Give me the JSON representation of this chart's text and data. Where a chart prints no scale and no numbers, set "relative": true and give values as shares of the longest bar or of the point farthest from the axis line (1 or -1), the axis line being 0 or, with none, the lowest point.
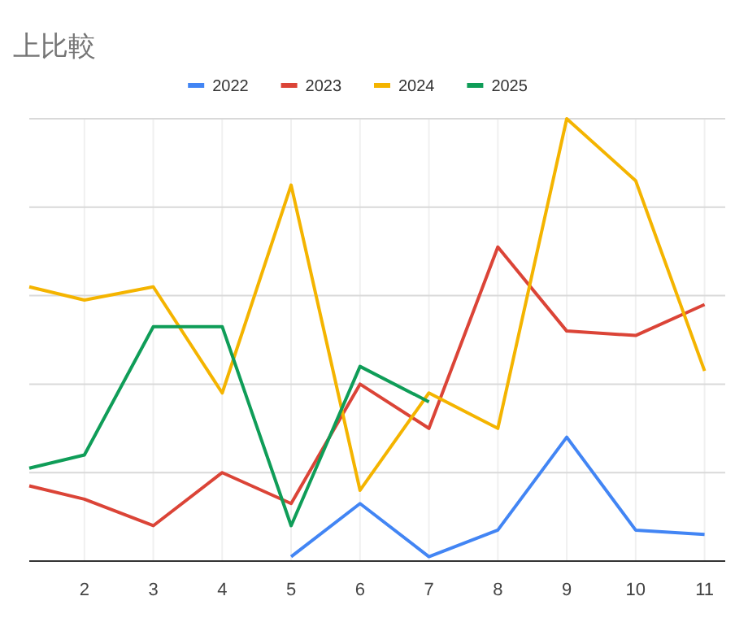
{
  "chart_data": {
    "type": "line",
    "title": "上比較",
    "relative": true,
    "grid": true,
    "legend": "top",
    "xlim": [
      1.2,
      11.3
    ],
    "xticks": [
      2,
      3,
      4,
      5,
      6,
      7,
      8,
      9,
      10,
      11
    ],
    "series": [
      {
        "name": "2022",
        "color": "#4285f4",
        "x": [
          5,
          6,
          7,
          8,
          9,
          10,
          11
        ],
        "values": [
          0.01,
          0.13,
          0.01,
          0.07,
          0.28,
          0.07,
          0.06
        ]
      },
      {
        "name": "2023",
        "color": "#db4437",
        "x": [
          1.2,
          2,
          3,
          4,
          5,
          6,
          7,
          8,
          9,
          10,
          11
        ],
        "values": [
          0.17,
          0.14,
          0.08,
          0.2,
          0.13,
          0.4,
          0.3,
          0.71,
          0.52,
          0.51,
          0.58
        ]
      },
      {
        "name": "2024",
        "color": "#f4b400",
        "x": [
          1.2,
          2,
          3,
          4,
          5,
          6,
          7,
          8,
          9,
          10,
          11
        ],
        "values": [
          0.62,
          0.59,
          0.62,
          0.38,
          0.85,
          0.16,
          0.38,
          0.3,
          1,
          0.86,
          0.43
        ]
      },
      {
        "name": "2025",
        "color": "#0f9d58",
        "x": [
          1.2,
          2,
          3,
          4,
          5,
          6,
          7
        ],
        "values": [
          0.21,
          0.24,
          0.53,
          0.53,
          0.08,
          0.44,
          0.36
        ]
      }
    ]
  }
}
